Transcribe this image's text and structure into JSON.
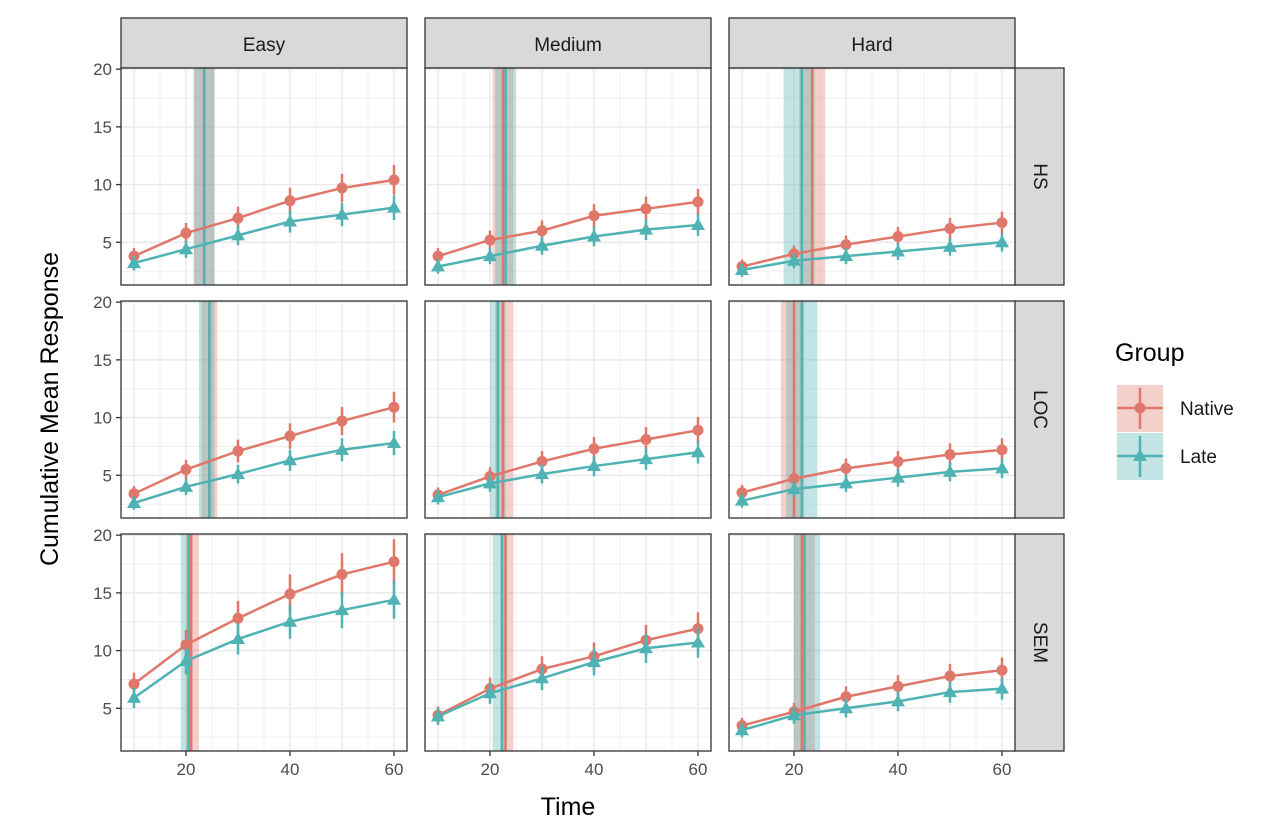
{
  "chart_data": {
    "type": "line",
    "xlabel": "Time",
    "ylabel": "Cumulative Mean Response",
    "xlim": [
      7.5,
      62.5
    ],
    "ylim": [
      1.3,
      20.1
    ],
    "x_ticks": [
      20,
      40,
      60
    ],
    "y_ticks": [
      5,
      10,
      15,
      20
    ],
    "grid": true,
    "columns": [
      "Easy",
      "Medium",
      "Hard"
    ],
    "rows": [
      "HS",
      "LOC",
      "SEM"
    ],
    "legend": {
      "title": "Group",
      "placement": "right",
      "entries": [
        "Native",
        "Late"
      ]
    },
    "colors": {
      "Native": "#E0776B",
      "Late": "#4FB2B3"
    },
    "x": [
      10,
      20,
      30,
      40,
      50,
      60
    ],
    "panels": [
      {
        "row": "HS",
        "col": "Easy",
        "Native": [
          3.8,
          5.8,
          7.1,
          8.6,
          9.7,
          10.4
        ],
        "Late": [
          3.2,
          4.4,
          5.6,
          6.8,
          7.4,
          8.0
        ],
        "vline": {
          "Native": [
            23.5,
            21.5,
            25.5
          ],
          "Late": [
            23.5,
            21.5,
            25.5
          ]
        }
      },
      {
        "row": "HS",
        "col": "Medium",
        "Native": [
          3.8,
          5.2,
          6.0,
          7.3,
          7.9,
          8.5
        ],
        "Late": [
          2.9,
          3.8,
          4.7,
          5.5,
          6.1,
          6.5
        ],
        "vline": {
          "Native": [
            22.5,
            20.5,
            24.5
          ],
          "Late": [
            23.0,
            21.0,
            25.0
          ]
        }
      },
      {
        "row": "HS",
        "col": "Hard",
        "Native": [
          2.9,
          4.0,
          4.8,
          5.5,
          6.2,
          6.7
        ],
        "Late": [
          2.6,
          3.4,
          3.8,
          4.2,
          4.6,
          5.0
        ],
        "vline": {
          "Native": [
            23.5,
            21.0,
            26.0
          ],
          "Late": [
            21.5,
            18.0,
            24.0
          ]
        }
      },
      {
        "row": "LOC",
        "col": "Easy",
        "Native": [
          3.4,
          5.5,
          7.1,
          8.4,
          9.7,
          10.9
        ],
        "Late": [
          2.6,
          4.0,
          5.1,
          6.3,
          7.2,
          7.8
        ],
        "vline": {
          "Native": [
            24.5,
            23.0,
            26.0
          ],
          "Late": [
            24.5,
            22.5,
            25.5
          ]
        }
      },
      {
        "row": "LOC",
        "col": "Medium",
        "Native": [
          3.3,
          4.9,
          6.2,
          7.3,
          8.1,
          8.9
        ],
        "Late": [
          3.1,
          4.3,
          5.1,
          5.8,
          6.4,
          7.0
        ],
        "vline": {
          "Native": [
            22.5,
            21.0,
            24.5
          ],
          "Late": [
            21.5,
            20.0,
            23.0
          ]
        }
      },
      {
        "row": "LOC",
        "col": "Hard",
        "Native": [
          3.5,
          4.7,
          5.6,
          6.2,
          6.8,
          7.2
        ],
        "Late": [
          2.8,
          3.8,
          4.3,
          4.8,
          5.3,
          5.6
        ],
        "vline": {
          "Native": [
            20.0,
            17.5,
            22.0
          ],
          "Late": [
            21.5,
            18.5,
            24.5
          ]
        }
      },
      {
        "row": "SEM",
        "col": "Easy",
        "Native": [
          7.1,
          10.5,
          12.8,
          14.9,
          16.6,
          17.7
        ],
        "Late": [
          5.9,
          9.1,
          11.0,
          12.5,
          13.5,
          14.4
        ],
        "vline": {
          "Native": [
            21.0,
            20.0,
            22.5
          ],
          "Late": [
            20.5,
            19.0,
            21.0
          ]
        }
      },
      {
        "row": "SEM",
        "col": "Medium",
        "Native": [
          4.4,
          6.7,
          8.4,
          9.5,
          10.9,
          11.9
        ],
        "Late": [
          4.3,
          6.3,
          7.6,
          9.0,
          10.2,
          10.7
        ],
        "vline": {
          "Native": [
            23.0,
            22.0,
            24.5
          ],
          "Late": [
            22.3,
            20.5,
            22.8
          ]
        }
      },
      {
        "row": "SEM",
        "col": "Hard",
        "Native": [
          3.5,
          4.7,
          6.0,
          6.9,
          7.8,
          8.3
        ],
        "Late": [
          3.1,
          4.4,
          5.0,
          5.6,
          6.4,
          6.7
        ],
        "vline": {
          "Native": [
            21.5,
            20.0,
            24.0
          ],
          "Late": [
            22.0,
            20.0,
            25.0
          ]
        }
      }
    ]
  }
}
